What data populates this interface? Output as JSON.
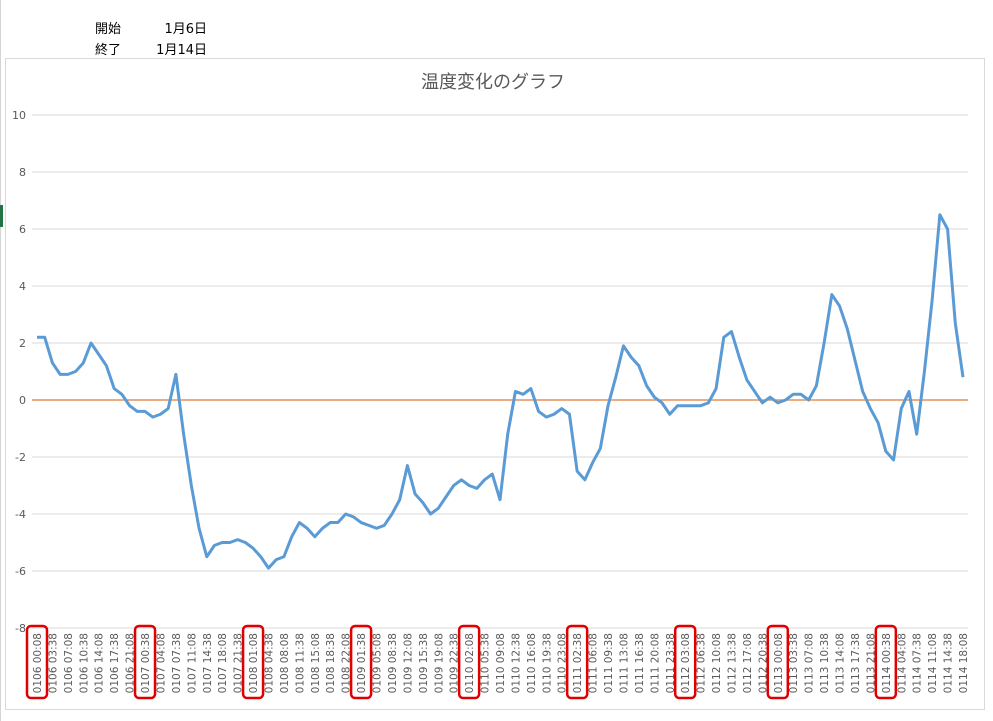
{
  "sheet": {
    "start_label": "開始",
    "start_value": "1月6日",
    "end_label": "終了",
    "end_value": "1月14日"
  },
  "chart_data": {
    "type": "line",
    "title": "温度変化のグラフ",
    "color": "#5b9bd5",
    "axis_color": "#e07b39",
    "grid": true,
    "ylim": [
      -8,
      10
    ],
    "yticks": [
      -8,
      -6,
      -4,
      -2,
      0,
      2,
      4,
      6,
      8,
      10
    ],
    "categories": [
      "0106 00:08",
      null,
      "0106 03:38",
      null,
      "0106 07:08",
      null,
      "0106 10:38",
      null,
      "0106 14:08",
      null,
      "0106 17:38",
      null,
      "0106 21:08",
      null,
      "0107 00:38",
      null,
      "0107 04:08",
      null,
      "0107 07:38",
      null,
      "0107 11:08",
      null,
      "0107 14:38",
      null,
      "0107 18:08",
      null,
      "0107 21:38",
      null,
      "0108 01:08",
      null,
      "0108 04:38",
      null,
      "0108 08:08",
      null,
      "0108 11:38",
      null,
      "0108 15:08",
      null,
      "0108 18:38",
      null,
      "0108 22:08",
      null,
      "0109 01:38",
      null,
      "0109 05:08",
      null,
      "0109 08:38",
      null,
      "0109 12:08",
      null,
      "0109 15:38",
      null,
      "0109 19:08",
      null,
      "0109 22:38",
      null,
      "0110 02:08",
      null,
      "0110 05:38",
      null,
      "0110 09:08",
      null,
      "0110 12:38",
      null,
      "0110 16:08",
      null,
      "0110 19:38",
      null,
      "0110 23:08",
      null,
      "0111 02:38",
      null,
      "0111 06:08",
      null,
      "0111 09:38",
      null,
      "0111 13:08",
      null,
      "0111 16:38",
      null,
      "0111 20:08",
      null,
      "0111 23:38",
      null,
      "0112 03:08",
      null,
      "0112 06:38",
      null,
      "0112 10:08",
      null,
      "0112 13:38",
      null,
      "0112 17:08",
      null,
      "0112 20:38",
      null,
      "0113 00:08",
      null,
      "0113 03:38",
      null,
      "0113 07:08",
      null,
      "0113 10:38",
      null,
      "0113 14:08",
      null,
      "0113 17:38",
      null,
      "0113 21:08",
      null,
      "0114 00:38",
      null,
      "0114 04:08",
      null,
      "0114 07:38",
      null,
      "0114 11:08",
      null,
      "0114 14:38",
      null,
      "0114 18:08"
    ],
    "values": [
      2.2,
      2.2,
      1.3,
      0.9,
      0.9,
      1.0,
      1.3,
      2.0,
      1.6,
      1.2,
      0.4,
      0.2,
      -0.2,
      -0.4,
      -0.4,
      -0.6,
      -0.5,
      -0.3,
      0.9,
      -1.2,
      -3.0,
      -4.5,
      -5.5,
      -5.1,
      -5.0,
      -5.0,
      -4.9,
      -5.0,
      -5.2,
      -5.5,
      -5.9,
      -5.6,
      -5.5,
      -4.8,
      -4.3,
      -4.5,
      -4.8,
      -4.5,
      -4.3,
      -4.3,
      -4.0,
      -4.1,
      -4.3,
      -4.4,
      -4.5,
      -4.4,
      -4.0,
      -3.5,
      -2.3,
      -3.3,
      -3.6,
      -4.0,
      -3.8,
      -3.4,
      -3.0,
      -2.8,
      -3.0,
      -3.1,
      -2.8,
      -2.6,
      -3.5,
      -1.2,
      0.3,
      0.2,
      0.4,
      -0.4,
      -0.6,
      -0.5,
      -0.3,
      -0.5,
      -2.5,
      -2.8,
      -2.2,
      -1.7,
      -0.2,
      0.8,
      1.9,
      1.5,
      1.2,
      0.5,
      0.1,
      -0.1,
      -0.5,
      -0.2,
      -0.2,
      -0.2,
      -0.2,
      -0.1,
      0.4,
      2.2,
      2.4,
      1.5,
      0.7,
      0.3,
      -0.1,
      0.1,
      -0.1,
      0.0,
      0.2,
      0.2,
      0.0,
      0.5,
      2.0,
      3.7,
      3.3,
      2.5,
      1.4,
      0.3,
      -0.3,
      -0.8,
      -1.8,
      -2.1,
      -0.3,
      0.3,
      -1.2,
      1.0,
      3.5,
      6.5,
      6.0,
      2.7,
      0.8
    ]
  }
}
